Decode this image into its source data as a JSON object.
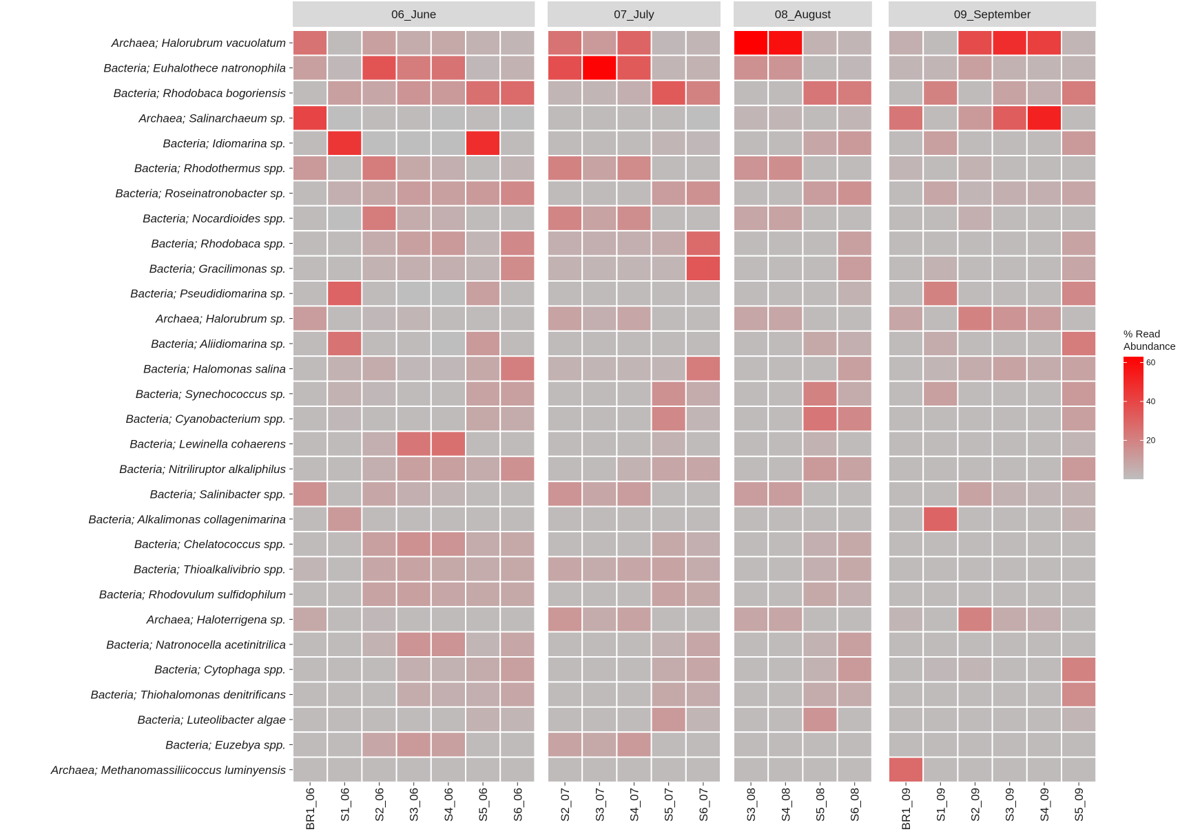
{
  "chart_data": {
    "type": "heatmap",
    "legend": {
      "title_line1": "% Read",
      "title_line2": "Abundance",
      "ticks": [
        20,
        40,
        60
      ],
      "range": [
        0,
        63
      ],
      "low_color": "#bebebe",
      "high_color": "#ff0000",
      "placement": "right"
    },
    "rows": [
      "Archaea; Halorubrum vacuolatum",
      "Bacteria; Euhalothece natronophila",
      "Bacteria; Rhodobaca bogoriensis",
      "Archaea; Salinarchaeum sp.",
      "Bacteria; Idiomarina sp.",
      "Bacteria; Rhodothermus spp.",
      "Bacteria; Roseinatronobacter sp.",
      "Bacteria; Nocardioides spp.",
      "Bacteria; Rhodobaca spp.",
      "Bacteria; Gracilimonas sp.",
      "Bacteria; Pseudidiomarina sp.",
      "Archaea; Halorubrum sp.",
      "Bacteria; Aliidiomarina sp.",
      "Bacteria; Halomonas salina",
      "Bacteria; Synechococcus sp.",
      "Bacteria; Cyanobacterium spp.",
      "Bacteria; Lewinella cohaerens",
      "Bacteria; Nitriliruptor alkaliphilus",
      "Bacteria; Salinibacter spp.",
      "Bacteria; Alkalimonas collagenimarina",
      "Bacteria; Chelatococcus spp.",
      "Bacteria; Thioalkalivibrio spp.",
      "Bacteria; Rhodovulum sulfidophilum",
      "Archaea; Haloterrigena sp.",
      "Bacteria; Natronocella acetinitrilica",
      "Bacteria; Cytophaga spp.",
      "Bacteria; Thiohalomonas denitrificans",
      "Bacteria; Luteolibacter algae",
      "Bacteria; Euzebya spp.",
      "Archaea; Methanomassiliicoccus luminyensis"
    ],
    "panels": [
      {
        "strip": "06_June",
        "columns": [
          "BR1_06",
          "S1_06",
          "S2_06",
          "S3_06",
          "S4_06",
          "S5_06",
          "S6_06"
        ],
        "values": [
          [
            25,
            1,
            10,
            6,
            7,
            4,
            3
          ],
          [
            10,
            2,
            35,
            22,
            25,
            2,
            4
          ],
          [
            1,
            10,
            8,
            14,
            12,
            26,
            28
          ],
          [
            40,
            0,
            1,
            1,
            0,
            1,
            0
          ],
          [
            1,
            45,
            0,
            0,
            0,
            48,
            1
          ],
          [
            12,
            1,
            22,
            7,
            5,
            1,
            3
          ],
          [
            1,
            5,
            7,
            11,
            10,
            12,
            18
          ],
          [
            1,
            0,
            22,
            6,
            5,
            1,
            1
          ],
          [
            1,
            1,
            6,
            10,
            12,
            3,
            18
          ],
          [
            1,
            1,
            4,
            5,
            5,
            3,
            17
          ],
          [
            1,
            30,
            1,
            0,
            0,
            10,
            1
          ],
          [
            11,
            1,
            2,
            3,
            1,
            1,
            1
          ],
          [
            1,
            25,
            1,
            1,
            0,
            12,
            1
          ],
          [
            1,
            4,
            6,
            2,
            2,
            7,
            21
          ],
          [
            1,
            4,
            2,
            1,
            1,
            9,
            10
          ],
          [
            1,
            2,
            1,
            1,
            1,
            7,
            6
          ],
          [
            1,
            1,
            5,
            24,
            26,
            1,
            1
          ],
          [
            1,
            1,
            5,
            10,
            10,
            6,
            15
          ],
          [
            15,
            1,
            8,
            5,
            3,
            1,
            1
          ],
          [
            1,
            12,
            1,
            1,
            1,
            1,
            1
          ],
          [
            1,
            1,
            10,
            15,
            14,
            6,
            7
          ],
          [
            3,
            1,
            8,
            9,
            7,
            6,
            7
          ],
          [
            1,
            1,
            9,
            10,
            8,
            7,
            7
          ],
          [
            7,
            1,
            2,
            1,
            1,
            1,
            1
          ],
          [
            1,
            1,
            4,
            14,
            14,
            3,
            8
          ],
          [
            1,
            1,
            1,
            5,
            4,
            6,
            10
          ],
          [
            1,
            1,
            1,
            6,
            5,
            5,
            8
          ],
          [
            1,
            1,
            1,
            1,
            1,
            4,
            3
          ],
          [
            1,
            1,
            8,
            12,
            10,
            1,
            1
          ],
          [
            1,
            1,
            1,
            1,
            1,
            1,
            1
          ]
        ]
      },
      {
        "strip": "07_July",
        "columns": [
          "S2_07",
          "S3_07",
          "S4_07",
          "S5_07",
          "S6_07"
        ],
        "values": [
          [
            25,
            12,
            30,
            2,
            3
          ],
          [
            37,
            62,
            33,
            3,
            4
          ],
          [
            3,
            3,
            5,
            33,
            20
          ],
          [
            1,
            1,
            1,
            1,
            0
          ],
          [
            1,
            1,
            1,
            3,
            2
          ],
          [
            20,
            9,
            17,
            1,
            1
          ],
          [
            1,
            1,
            1,
            11,
            15
          ],
          [
            19,
            9,
            16,
            1,
            1
          ],
          [
            5,
            5,
            5,
            6,
            28
          ],
          [
            4,
            3,
            3,
            3,
            34
          ],
          [
            1,
            1,
            1,
            1,
            1
          ],
          [
            9,
            5,
            8,
            1,
            1
          ],
          [
            1,
            1,
            1,
            1,
            1
          ],
          [
            4,
            3,
            3,
            3,
            22
          ],
          [
            1,
            1,
            1,
            15,
            6
          ],
          [
            1,
            1,
            1,
            18,
            3
          ],
          [
            1,
            1,
            1,
            4,
            1
          ],
          [
            1,
            1,
            4,
            8,
            8
          ],
          [
            14,
            8,
            11,
            1,
            1
          ],
          [
            1,
            1,
            1,
            1,
            1
          ],
          [
            1,
            1,
            1,
            7,
            5
          ],
          [
            8,
            6,
            8,
            9,
            6
          ],
          [
            1,
            1,
            1,
            9,
            7
          ],
          [
            13,
            6,
            9,
            1,
            1
          ],
          [
            1,
            1,
            1,
            4,
            8
          ],
          [
            1,
            1,
            1,
            6,
            8
          ],
          [
            1,
            1,
            1,
            7,
            6
          ],
          [
            1,
            1,
            1,
            12,
            3
          ],
          [
            9,
            7,
            12,
            1,
            1
          ],
          [
            1,
            1,
            1,
            1,
            1
          ]
        ]
      },
      {
        "strip": "08_August",
        "columns": [
          "S3_08",
          "S4_08",
          "S5_08",
          "S6_08"
        ],
        "values": [
          [
            63,
            58,
            4,
            3
          ],
          [
            15,
            14,
            1,
            2
          ],
          [
            1,
            1,
            24,
            22
          ],
          [
            3,
            3,
            1,
            3
          ],
          [
            1,
            1,
            8,
            12
          ],
          [
            14,
            16,
            1,
            1
          ],
          [
            1,
            1,
            11,
            15
          ],
          [
            8,
            9,
            1,
            1
          ],
          [
            1,
            1,
            1,
            10
          ],
          [
            1,
            1,
            1,
            11
          ],
          [
            1,
            1,
            1,
            4
          ],
          [
            8,
            8,
            1,
            1
          ],
          [
            1,
            1,
            7,
            5
          ],
          [
            1,
            1,
            1,
            10
          ],
          [
            1,
            1,
            20,
            6
          ],
          [
            1,
            1,
            24,
            18
          ],
          [
            1,
            1,
            4,
            1
          ],
          [
            1,
            1,
            12,
            9
          ],
          [
            11,
            11,
            1,
            1
          ],
          [
            1,
            1,
            1,
            1
          ],
          [
            1,
            1,
            5,
            7
          ],
          [
            1,
            1,
            5,
            7
          ],
          [
            1,
            1,
            7,
            5
          ],
          [
            8,
            8,
            1,
            1
          ],
          [
            1,
            1,
            4,
            10
          ],
          [
            1,
            1,
            4,
            12
          ],
          [
            1,
            1,
            6,
            6
          ],
          [
            1,
            1,
            14,
            1
          ],
          [
            1,
            1,
            1,
            1
          ],
          [
            1,
            1,
            1,
            1
          ]
        ]
      },
      {
        "strip": "09_September",
        "columns": [
          "BR1_09",
          "S1_09",
          "S2_09",
          "S3_09",
          "S4_09",
          "S5_09"
        ],
        "values": [
          [
            5,
            1,
            38,
            48,
            42,
            3
          ],
          [
            3,
            3,
            10,
            4,
            3,
            3
          ],
          [
            1,
            20,
            1,
            9,
            5,
            22
          ],
          [
            24,
            1,
            12,
            32,
            52,
            1
          ],
          [
            1,
            10,
            1,
            1,
            1,
            12
          ],
          [
            3,
            1,
            4,
            1,
            1,
            1
          ],
          [
            1,
            8,
            3,
            5,
            5,
            8
          ],
          [
            1,
            1,
            5,
            1,
            1,
            1
          ],
          [
            1,
            1,
            1,
            1,
            1,
            9
          ],
          [
            1,
            4,
            1,
            1,
            1,
            8
          ],
          [
            1,
            20,
            1,
            1,
            1,
            18
          ],
          [
            8,
            1,
            20,
            14,
            11,
            1
          ],
          [
            1,
            6,
            1,
            1,
            1,
            22
          ],
          [
            1,
            3,
            6,
            9,
            6,
            9
          ],
          [
            1,
            10,
            1,
            1,
            1,
            12
          ],
          [
            1,
            1,
            1,
            1,
            1,
            10
          ],
          [
            1,
            1,
            1,
            1,
            1,
            3
          ],
          [
            1,
            1,
            1,
            1,
            1,
            12
          ],
          [
            1,
            1,
            9,
            4,
            3,
            4
          ],
          [
            1,
            30,
            1,
            1,
            1,
            4
          ],
          [
            1,
            1,
            1,
            1,
            1,
            1
          ],
          [
            1,
            1,
            1,
            1,
            1,
            1
          ],
          [
            1,
            1,
            1,
            1,
            1,
            1
          ],
          [
            3,
            1,
            20,
            6,
            5,
            1
          ],
          [
            1,
            1,
            1,
            1,
            1,
            1
          ],
          [
            1,
            2,
            3,
            1,
            1,
            20
          ],
          [
            1,
            1,
            1,
            1,
            1,
            17
          ],
          [
            1,
            1,
            1,
            1,
            1,
            3
          ],
          [
            1,
            1,
            1,
            1,
            1,
            1
          ],
          [
            28,
            1,
            1,
            1,
            1,
            1
          ]
        ]
      }
    ]
  }
}
